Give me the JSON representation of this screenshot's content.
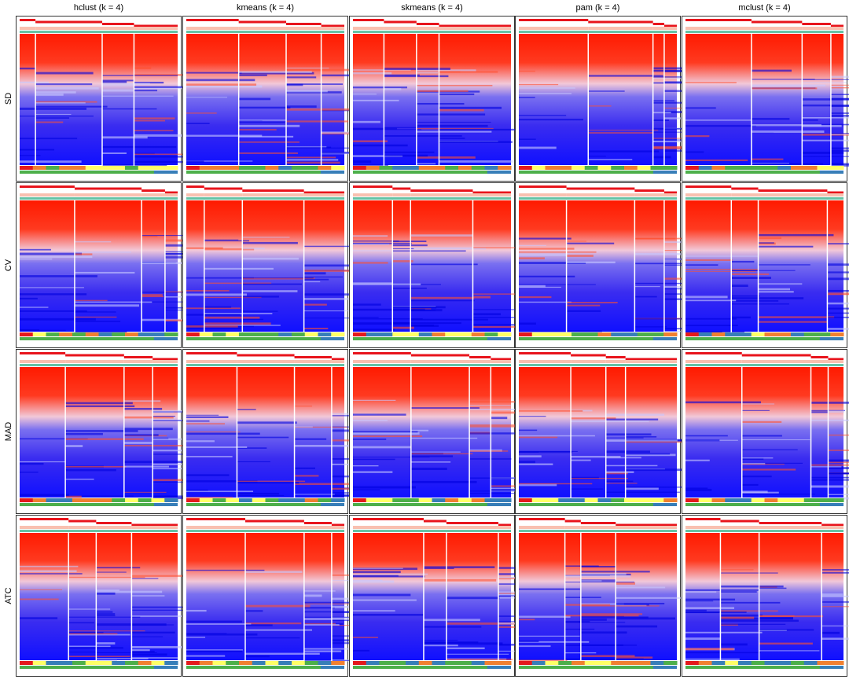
{
  "columns": [
    "hclust (k = 4)",
    "kmeans (k = 4)",
    "skmeans (k = 4)",
    "pam (k = 4)",
    "mclust (k = 4)"
  ],
  "rows": [
    "SD",
    "CV",
    "MAD",
    "ATC"
  ]
}
